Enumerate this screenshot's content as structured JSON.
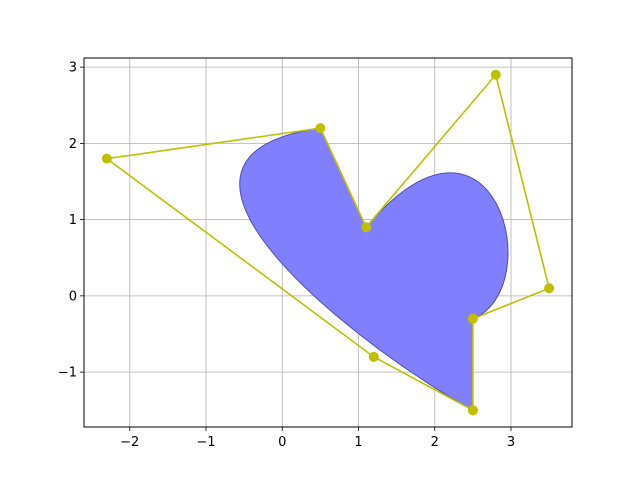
{
  "chart_data": {
    "type": "scatter",
    "title": "",
    "xlabel": "",
    "ylabel": "",
    "xlim": [
      -2.6,
      3.8
    ],
    "ylim": [
      -1.72,
      3.12
    ],
    "grid": true,
    "xticks": [
      -2,
      -1,
      0,
      1,
      2,
      3
    ],
    "xtick_labels": [
      "−2",
      "−1",
      "0",
      "1",
      "2",
      "3"
    ],
    "yticks": [
      -1,
      0,
      1,
      2,
      3
    ],
    "ytick_labels": [
      "−1",
      "0",
      "1",
      "2",
      "3"
    ],
    "control_points": {
      "x": [
        2.5,
        1.2,
        -2.3,
        0.5,
        1.1,
        2.8,
        3.5,
        2.5,
        2.5
      ],
      "y": [
        -1.5,
        -0.8,
        1.8,
        2.2,
        0.9,
        2.9,
        0.1,
        -0.3,
        -1.5
      ],
      "color": "#bfbf00"
    },
    "filled_bezier_shape": {
      "fill_color": "#8080ff",
      "edge_color": "#4d4da6"
    }
  }
}
